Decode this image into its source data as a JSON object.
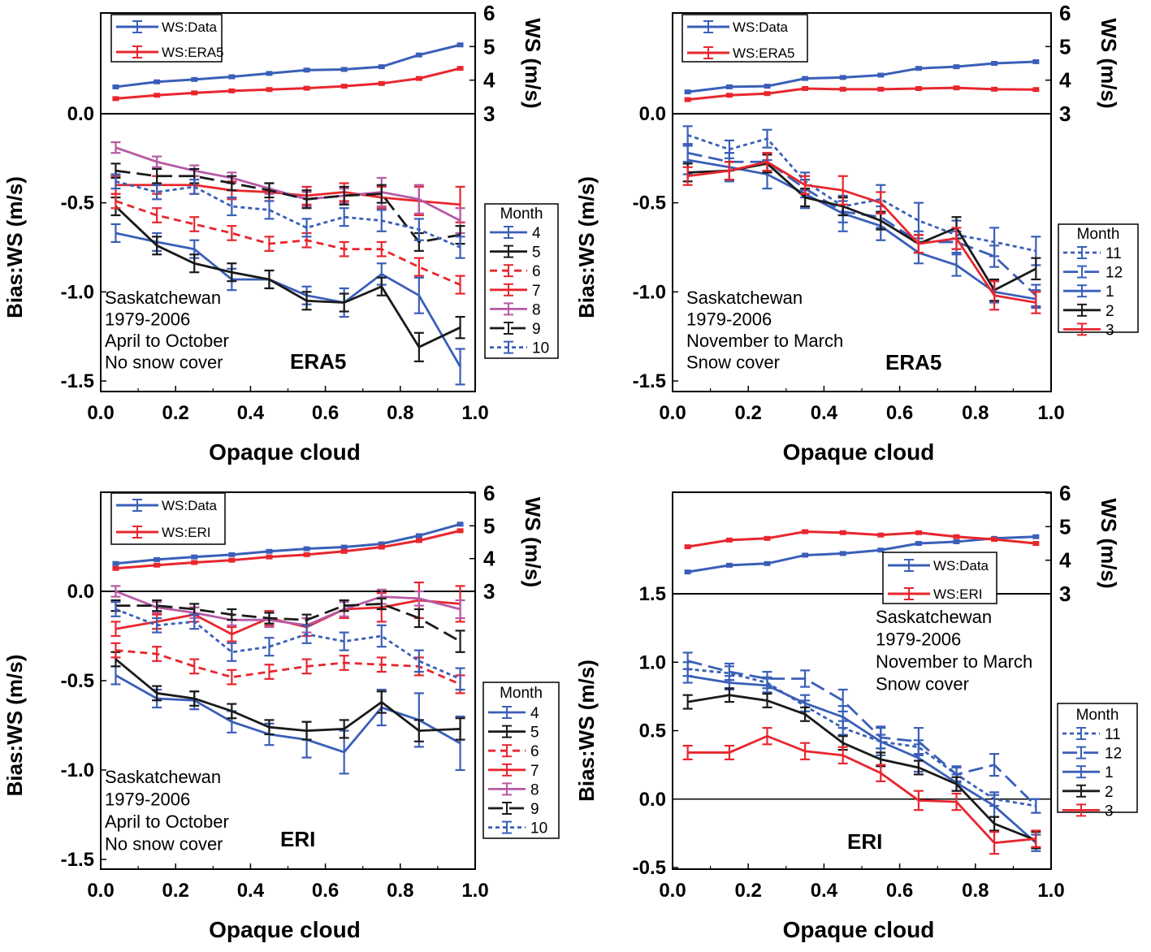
{
  "chart_data": [
    {
      "type": "line",
      "panel": "top-left",
      "xlabel": "Opaque cloud",
      "ylabel": "Bias:WS (m/s)",
      "y2label": "WS (m/s)",
      "xlim": [
        0.0,
        1.0
      ],
      "ylim": [
        -1.5,
        0.0
      ],
      "y2lim": [
        3,
        6
      ],
      "xticks": [
        "0.0",
        "0.2",
        "0.4",
        "0.6",
        "0.8",
        "1.0"
      ],
      "yticks": [
        "0.0",
        "-0.5",
        "-1.0",
        "-1.5"
      ],
      "y2ticks": [
        "3",
        "4",
        "5",
        "6"
      ],
      "x": [
        0.04,
        0.15,
        0.25,
        0.35,
        0.45,
        0.55,
        0.65,
        0.75,
        0.85,
        0.96
      ],
      "ws_series": [
        {
          "name": "WS:Data",
          "color": "#3a5fb8",
          "values": [
            3.8,
            3.95,
            4.02,
            4.1,
            4.2,
            4.3,
            4.32,
            4.4,
            4.75,
            5.05
          ]
        },
        {
          "name": "WS:ERA5",
          "color": "#e8262e",
          "values": [
            3.45,
            3.55,
            3.62,
            3.68,
            3.72,
            3.76,
            3.82,
            3.9,
            4.05,
            4.35
          ]
        }
      ],
      "legend_title": "Month",
      "series": [
        {
          "name": "4",
          "color": "#3a5fb8",
          "dash": "solid",
          "values": [
            -0.67,
            -0.72,
            -0.76,
            -0.93,
            -0.93,
            -1.02,
            -1.06,
            -0.9,
            -1.02,
            -1.42
          ],
          "err": [
            0.05,
            0.05,
            0.05,
            0.06,
            0.05,
            0.05,
            0.08,
            0.06,
            0.1,
            0.1
          ]
        },
        {
          "name": "5",
          "color": "#1a1a1a",
          "dash": "solid",
          "values": [
            -0.52,
            -0.74,
            -0.84,
            -0.89,
            -0.93,
            -1.05,
            -1.06,
            -0.97,
            -1.31,
            -1.2
          ],
          "err": [
            0.05,
            0.05,
            0.05,
            0.05,
            0.05,
            0.05,
            0.05,
            0.05,
            0.08,
            0.06
          ]
        },
        {
          "name": "6",
          "color": "#e8262e",
          "dash": "dash",
          "values": [
            -0.49,
            -0.57,
            -0.62,
            -0.67,
            -0.73,
            -0.71,
            -0.76,
            -0.76,
            -0.86,
            -0.96
          ],
          "err": [
            0.04,
            0.04,
            0.04,
            0.04,
            0.04,
            0.04,
            0.04,
            0.04,
            0.05,
            0.05
          ]
        },
        {
          "name": "7",
          "color": "#e8262e",
          "dash": "solid",
          "values": [
            -0.4,
            -0.4,
            -0.4,
            -0.43,
            -0.44,
            -0.46,
            -0.44,
            -0.47,
            -0.49,
            -0.51
          ],
          "err": [
            0.05,
            0.05,
            0.05,
            0.05,
            0.05,
            0.05,
            0.05,
            0.06,
            0.08,
            0.1
          ]
        },
        {
          "name": "8",
          "color": "#b65aa6",
          "dash": "solid",
          "values": [
            -0.19,
            -0.27,
            -0.32,
            -0.36,
            -0.42,
            -0.48,
            -0.46,
            -0.44,
            -0.48,
            -0.6
          ],
          "err": [
            0.03,
            0.03,
            0.03,
            0.03,
            0.03,
            0.04,
            0.04,
            0.08,
            0.08,
            0.07
          ]
        },
        {
          "name": "9",
          "color": "#1a1a1a",
          "dash": "longdash",
          "values": [
            -0.32,
            -0.35,
            -0.35,
            -0.39,
            -0.43,
            -0.48,
            -0.46,
            -0.45,
            -0.72,
            -0.68
          ],
          "err": [
            0.04,
            0.04,
            0.04,
            0.04,
            0.04,
            0.05,
            0.05,
            0.05,
            0.05,
            0.05
          ]
        },
        {
          "name": "10",
          "color": "#3a5fb8",
          "dash": "dot",
          "values": [
            -0.38,
            -0.44,
            -0.41,
            -0.52,
            -0.54,
            -0.64,
            -0.58,
            -0.6,
            -0.65,
            -0.75
          ],
          "err": [
            0.04,
            0.04,
            0.04,
            0.05,
            0.05,
            0.05,
            0.05,
            0.06,
            0.06,
            0.06
          ]
        }
      ],
      "annotations": [
        "Saskatchewan",
        "1979-2006",
        "April to October",
        "No snow cover"
      ],
      "dataset_label": "ERA5"
    },
    {
      "type": "line",
      "panel": "top-right",
      "xlabel": "Opaque cloud",
      "ylabel": "Bias:WS (m/s)",
      "y2label": "WS (m/s)",
      "xlim": [
        0.0,
        1.0
      ],
      "ylim": [
        -1.5,
        0.0
      ],
      "y2lim": [
        3,
        6
      ],
      "xticks": [
        "0.0",
        "0.2",
        "0.4",
        "0.6",
        "0.8",
        "1.0"
      ],
      "yticks": [
        "0.0",
        "-0.5",
        "-1.0",
        "-1.5"
      ],
      "y2ticks": [
        "3",
        "4",
        "5",
        "6"
      ],
      "x": [
        0.04,
        0.15,
        0.25,
        0.35,
        0.45,
        0.55,
        0.65,
        0.75,
        0.85,
        0.96
      ],
      "ws_series": [
        {
          "name": "WS:Data",
          "color": "#3a5fb8",
          "values": [
            3.65,
            3.8,
            3.82,
            4.05,
            4.08,
            4.15,
            4.35,
            4.4,
            4.5,
            4.55
          ]
        },
        {
          "name": "WS:ERA5",
          "color": "#e8262e",
          "values": [
            3.42,
            3.55,
            3.6,
            3.75,
            3.73,
            3.73,
            3.75,
            3.77,
            3.73,
            3.72
          ]
        }
      ],
      "legend_title": "Month",
      "series": [
        {
          "name": "11",
          "color": "#3a5fb8",
          "dash": "dot",
          "values": [
            -0.12,
            -0.2,
            -0.14,
            -0.38,
            -0.52,
            -0.48,
            -0.6,
            -0.68,
            -0.72,
            -0.77
          ],
          "err": [
            0.05,
            0.05,
            0.05,
            0.05,
            0.05,
            0.08,
            0.1,
            0.08,
            0.08,
            0.08
          ]
        },
        {
          "name": "12",
          "color": "#3a5fb8",
          "dash": "longdash",
          "values": [
            -0.22,
            -0.27,
            -0.27,
            -0.42,
            -0.55,
            -0.58,
            -0.72,
            -0.72,
            -0.8,
            -1.02
          ],
          "err": [
            0.05,
            0.05,
            0.05,
            0.05,
            0.06,
            0.06,
            0.06,
            0.06,
            0.06,
            0.06
          ]
        },
        {
          "name": "1",
          "color": "#3a5fb8",
          "dash": "solid",
          "values": [
            -0.26,
            -0.3,
            -0.34,
            -0.45,
            -0.56,
            -0.63,
            -0.78,
            -0.85,
            -1.0,
            -1.04
          ],
          "err": [
            0.08,
            0.08,
            0.08,
            0.08,
            0.1,
            0.08,
            0.06,
            0.06,
            0.06,
            0.05
          ]
        },
        {
          "name": "2",
          "color": "#1a1a1a",
          "dash": "solid",
          "values": [
            -0.33,
            -0.32,
            -0.28,
            -0.47,
            -0.52,
            -0.6,
            -0.73,
            -0.64,
            -0.99,
            -0.87
          ],
          "err": [
            0.05,
            0.05,
            0.05,
            0.05,
            0.05,
            0.05,
            0.05,
            0.06,
            0.06,
            0.06
          ]
        },
        {
          "name": "3",
          "color": "#e8262e",
          "dash": "solid",
          "values": [
            -0.35,
            -0.32,
            -0.27,
            -0.4,
            -0.43,
            -0.5,
            -0.73,
            -0.7,
            -1.02,
            -1.06
          ],
          "err": [
            0.05,
            0.05,
            0.05,
            0.05,
            0.08,
            0.06,
            0.05,
            0.06,
            0.08,
            0.06
          ]
        }
      ],
      "annotations": [
        "Saskatchewan",
        "1979-2006",
        "November to March",
        "Snow cover"
      ],
      "dataset_label": "ERA5"
    },
    {
      "type": "line",
      "panel": "bottom-left",
      "xlabel": "Opaque cloud",
      "ylabel": "Bias:WS (m/s)",
      "y2label": "WS (m/s)",
      "xlim": [
        0.0,
        1.0
      ],
      "ylim": [
        -1.5,
        0.0
      ],
      "y2lim": [
        3,
        6
      ],
      "xticks": [
        "0.0",
        "0.2",
        "0.4",
        "0.6",
        "0.8",
        "1.0"
      ],
      "yticks": [
        "0.0",
        "-0.5",
        "-1.0",
        "-1.5"
      ],
      "y2ticks": [
        "3",
        "4",
        "5",
        "6"
      ],
      "x": [
        0.04,
        0.15,
        0.25,
        0.35,
        0.45,
        0.55,
        0.65,
        0.75,
        0.85,
        0.96
      ],
      "ws_series": [
        {
          "name": "WS:Data",
          "color": "#3a5fb8",
          "values": [
            3.85,
            3.97,
            4.05,
            4.12,
            4.22,
            4.3,
            4.35,
            4.45,
            4.7,
            5.05
          ]
        },
        {
          "name": "WS:ERI",
          "color": "#e8262e",
          "values": [
            3.7,
            3.8,
            3.88,
            3.95,
            4.05,
            4.12,
            4.22,
            4.35,
            4.55,
            4.85
          ]
        }
      ],
      "legend_title": "Month",
      "series": [
        {
          "name": "4",
          "color": "#3a5fb8",
          "dash": "solid",
          "values": [
            -0.47,
            -0.6,
            -0.61,
            -0.73,
            -0.8,
            -0.83,
            -0.9,
            -0.65,
            -0.72,
            -0.85
          ],
          "err": [
            0.05,
            0.05,
            0.05,
            0.06,
            0.06,
            0.1,
            0.12,
            0.1,
            0.15,
            0.15
          ]
        },
        {
          "name": "5",
          "color": "#1a1a1a",
          "dash": "solid",
          "values": [
            -0.38,
            -0.57,
            -0.6,
            -0.67,
            -0.76,
            -0.78,
            -0.77,
            -0.62,
            -0.78,
            -0.77
          ],
          "err": [
            0.04,
            0.04,
            0.04,
            0.04,
            0.04,
            0.05,
            0.05,
            0.06,
            0.06,
            0.06
          ]
        },
        {
          "name": "6",
          "color": "#e8262e",
          "dash": "dash",
          "values": [
            -0.33,
            -0.35,
            -0.42,
            -0.48,
            -0.45,
            -0.42,
            -0.4,
            -0.41,
            -0.42,
            -0.52
          ],
          "err": [
            0.04,
            0.04,
            0.04,
            0.04,
            0.04,
            0.04,
            0.04,
            0.04,
            0.05,
            0.05
          ]
        },
        {
          "name": "7",
          "color": "#e8262e",
          "dash": "solid",
          "values": [
            -0.21,
            -0.17,
            -0.13,
            -0.24,
            -0.15,
            -0.2,
            -0.1,
            -0.09,
            -0.05,
            -0.07
          ],
          "err": [
            0.04,
            0.04,
            0.04,
            0.04,
            0.04,
            0.05,
            0.05,
            0.08,
            0.1,
            0.1
          ]
        },
        {
          "name": "8",
          "color": "#b65aa6",
          "dash": "solid",
          "values": [
            0.0,
            -0.09,
            -0.12,
            -0.16,
            -0.16,
            -0.19,
            -0.1,
            -0.03,
            -0.04,
            -0.1
          ],
          "err": [
            0.03,
            0.03,
            0.03,
            0.03,
            0.04,
            0.04,
            0.04,
            0.04,
            0.04,
            0.05
          ]
        },
        {
          "name": "9",
          "color": "#1a1a1a",
          "dash": "longdash",
          "values": [
            -0.08,
            -0.08,
            -0.1,
            -0.13,
            -0.15,
            -0.16,
            -0.08,
            -0.07,
            -0.15,
            -0.28
          ],
          "err": [
            0.03,
            0.03,
            0.03,
            0.03,
            0.03,
            0.03,
            0.03,
            0.03,
            0.05,
            0.06
          ]
        },
        {
          "name": "10",
          "color": "#3a5fb8",
          "dash": "dot",
          "values": [
            -0.1,
            -0.19,
            -0.17,
            -0.34,
            -0.31,
            -0.24,
            -0.28,
            -0.25,
            -0.39,
            -0.49
          ],
          "err": [
            0.04,
            0.04,
            0.04,
            0.05,
            0.05,
            0.05,
            0.05,
            0.06,
            0.06,
            0.06
          ]
        }
      ],
      "annotations": [
        "Saskatchewan",
        "1979-2006",
        "April to October",
        "No snow cover"
      ],
      "dataset_label": "ERI"
    },
    {
      "type": "line",
      "panel": "bottom-right",
      "xlabel": "Opaque cloud",
      "ylabel": "Bias:WS (m/s)",
      "y2label": "WS (m/s)",
      "xlim": [
        0.0,
        1.0
      ],
      "ylim": [
        -0.5,
        1.5
      ],
      "y2lim": [
        3,
        6
      ],
      "xticks": [
        "0.0",
        "0.2",
        "0.4",
        "0.6",
        "0.8",
        "1.0"
      ],
      "yticks": [
        "1.5",
        "1.0",
        "0.5",
        "0.0",
        "-0.5"
      ],
      "y2ticks": [
        "3",
        "4",
        "5",
        "6"
      ],
      "x": [
        0.04,
        0.15,
        0.25,
        0.35,
        0.45,
        0.55,
        0.65,
        0.75,
        0.85,
        0.96
      ],
      "ws_series": [
        {
          "name": "WS:Data",
          "color": "#3a5fb8",
          "values": [
            3.65,
            3.85,
            3.9,
            4.15,
            4.2,
            4.3,
            4.5,
            4.55,
            4.65,
            4.7
          ]
        },
        {
          "name": "WS:ERI",
          "color": "#e8262e",
          "values": [
            4.4,
            4.6,
            4.65,
            4.85,
            4.82,
            4.75,
            4.82,
            4.7,
            4.62,
            4.5
          ]
        }
      ],
      "legend_title": "Month",
      "series": [
        {
          "name": "11",
          "color": "#3a5fb8",
          "dash": "dot",
          "values": [
            0.95,
            0.92,
            0.85,
            0.68,
            0.52,
            0.42,
            0.38,
            0.18,
            0.0,
            -0.05
          ],
          "err": [
            0.05,
            0.05,
            0.04,
            0.04,
            0.05,
            0.05,
            0.05,
            0.05,
            0.05,
            0.05
          ]
        },
        {
          "name": "12",
          "color": "#3a5fb8",
          "dash": "longdash",
          "values": [
            1.01,
            0.93,
            0.88,
            0.88,
            0.72,
            0.45,
            0.42,
            0.18,
            0.25,
            -0.05
          ],
          "err": [
            0.06,
            0.06,
            0.05,
            0.06,
            0.08,
            0.08,
            0.1,
            0.06,
            0.08,
            0.05
          ]
        },
        {
          "name": "1",
          "color": "#3a5fb8",
          "dash": "solid",
          "values": [
            0.9,
            0.85,
            0.83,
            0.7,
            0.6,
            0.42,
            0.3,
            0.12,
            -0.05,
            -0.32
          ],
          "err": [
            0.05,
            0.05,
            0.05,
            0.06,
            0.08,
            0.1,
            0.1,
            0.06,
            0.08,
            0.06
          ]
        },
        {
          "name": "2",
          "color": "#1a1a1a",
          "dash": "solid",
          "values": [
            0.71,
            0.76,
            0.72,
            0.62,
            0.41,
            0.29,
            0.23,
            0.11,
            -0.18,
            -0.3
          ],
          "err": [
            0.05,
            0.05,
            0.05,
            0.05,
            0.05,
            0.05,
            0.05,
            0.05,
            0.05,
            0.06
          ]
        },
        {
          "name": "3",
          "color": "#e8262e",
          "dash": "solid",
          "values": [
            0.34,
            0.34,
            0.46,
            0.35,
            0.32,
            0.19,
            -0.01,
            -0.02,
            -0.32,
            -0.29
          ],
          "err": [
            0.05,
            0.05,
            0.06,
            0.06,
            0.06,
            0.06,
            0.07,
            0.06,
            0.08,
            0.06
          ]
        }
      ],
      "annotations": [
        "Saskatchewan",
        "1979-2006",
        "November to March",
        "Snow cover"
      ],
      "dataset_label": "ERI"
    }
  ]
}
